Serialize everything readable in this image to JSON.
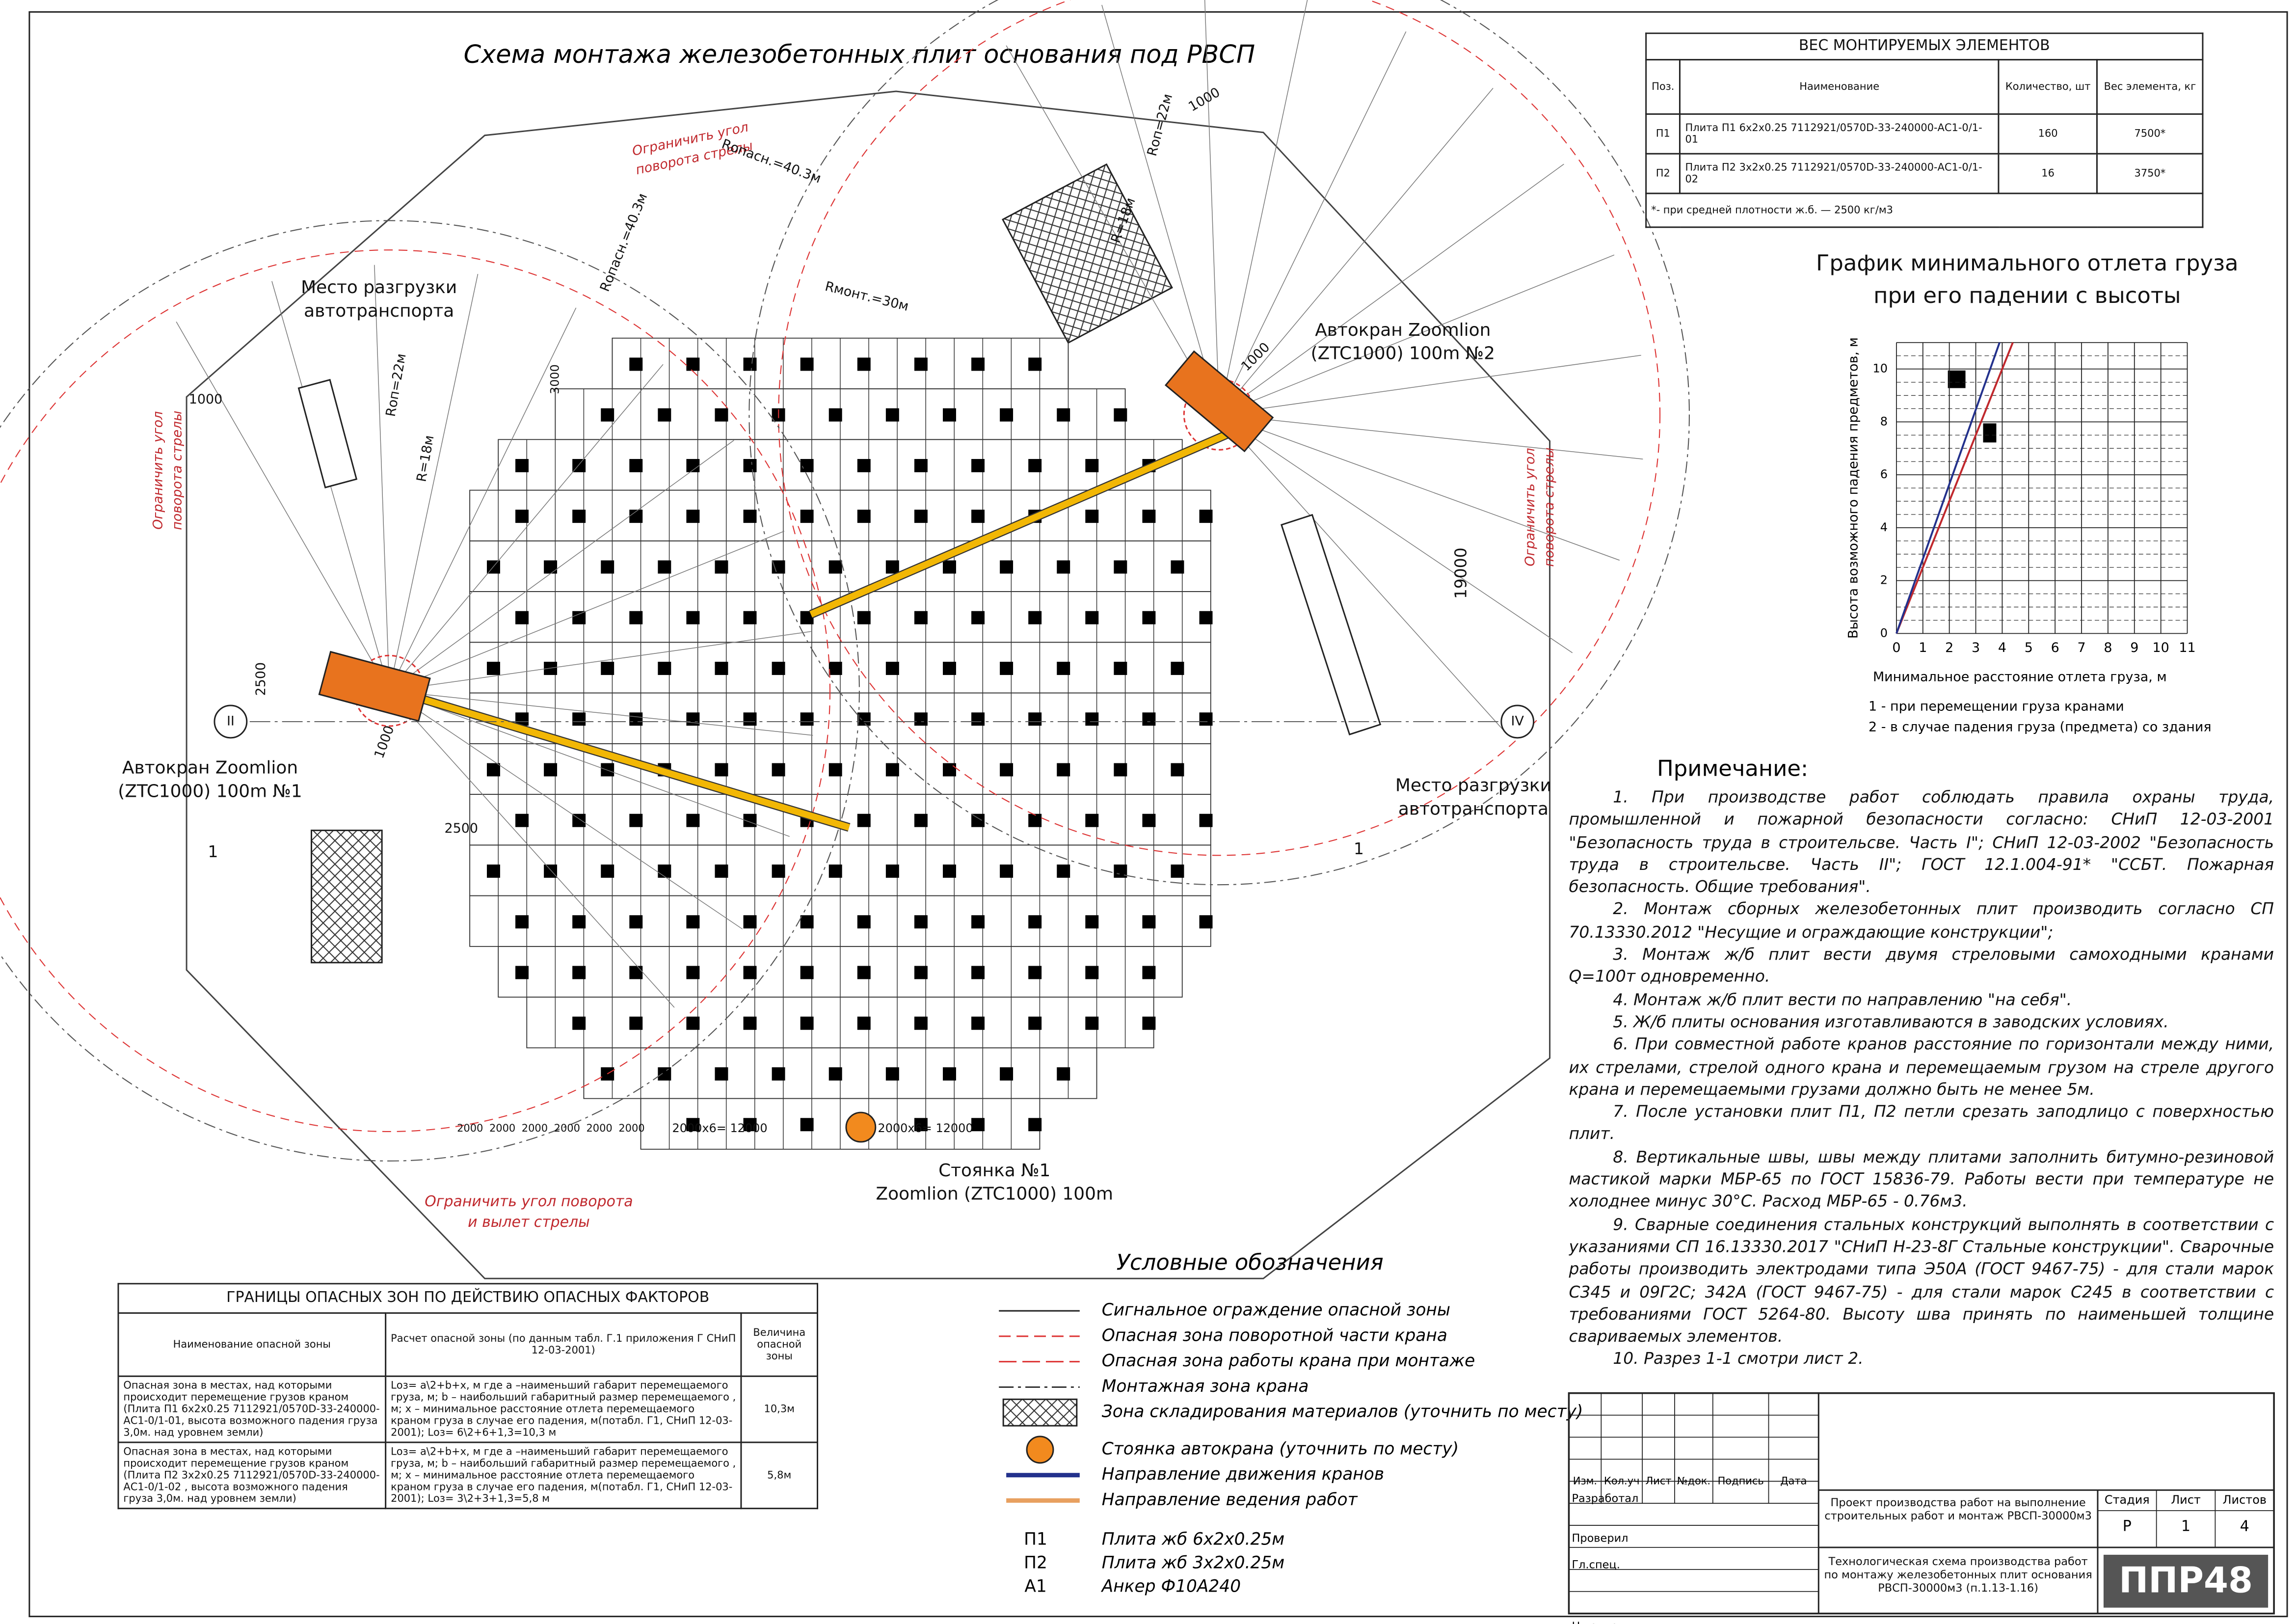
{
  "title": "Схема монтажа железобетонных плит основания под РВСП",
  "weights_table": {
    "title": "ВЕС МОНТИРУЕМЫХ ЭЛЕМЕНТОВ",
    "header": [
      "Поз.",
      "Наименование",
      "Количество, шт",
      "Вес элемента, кг"
    ],
    "rows": [
      [
        "П1",
        "Плита П1 6х2х0.25 7112921/0570D-33-240000-АС1-0/1-01",
        "160",
        "7500*"
      ],
      [
        "П2",
        "Плита П2 3х2х0.25 7112921/0570D-33-240000-АС1-0/1-02",
        "16",
        "3750*"
      ]
    ],
    "footnote": "*- при средней плотности ж.б. — 2500 кг/м3"
  },
  "chart_data": {
    "type": "line",
    "title": "График минимального отлета груза при его падении с высоты",
    "x_label": "Минимальное расстояние отлета груза, м",
    "y_label": "Высота возможного падения предметов, м",
    "xlim": [
      0,
      11
    ],
    "ylim": [
      0,
      11
    ],
    "xticks": [
      0,
      1,
      2,
      3,
      4,
      5,
      6,
      7,
      8,
      9,
      10,
      11
    ],
    "yticks": [
      0,
      2,
      4,
      6,
      8,
      10
    ],
    "grid": true,
    "series": [
      {
        "color": "#c0282d",
        "x": [
          0,
          4.4
        ],
        "values": [
          0,
          11
        ]
      },
      {
        "color": "#23318c",
        "x": [
          0,
          3.9
        ],
        "values": [
          0,
          11
        ]
      }
    ],
    "notes": [
      "1 - при перемещении груза кранами",
      "2 - в случае падения груза (предмета) со здания"
    ]
  },
  "notes": {
    "title": "Примечание:",
    "items": [
      "1. При производстве работ соблюдать правила охраны труда, промышленной и пожарной безопасности согласно: СНиП 12-03-2001 \"Безопасность труда в строительсве. Часть I\"; СНиП 12-03-2002 \"Безопасность труда в строительсве. Часть II\"; ГОСТ 12.1.004-91* \"ССБТ. Пожарная безопасность. Общие требования\".",
      "2. Монтаж сборных железобетонных плит производить согласно СП 70.13330.2012 \"Несущие и ограждающие конструкции\";",
      "3. Монтаж ж/б плит вести двумя стреловыми самоходными кранами Q=100т одновременно.",
      "4. Монтаж ж/б плит вести по направлению \"на себя\".",
      "5. Ж/б плиты основания изготавливаются в заводских условиях.",
      "6. При совместной работе кранов расстояние по горизонтали между ними, их стрелами, стрелой одного крана и перемещаемым грузом на стреле другого крана и перемещаемыми грузами должно быть не менее 5м.",
      "7. После установки плит П1, П2 петли срезать заподлицо с поверхностью плит.",
      "8. Вертикальные швы, швы между плитами заполнить битумно-резиновой мастикой марки МБР-65 по ГОСТ 15836-79. Работы вести при температуре не холоднее минус 30°С. Расход МБР-65 - 0.76м3.",
      "9. Сварные соединения стальных конструкций выполнять в соответствии с указаниями СП 16.13330.2017 \"СНиП Н-23-8Г Стальные конструкции\". Сварочные работы производить электродами типа Э50А (ГОСТ 9467-75) - для стали марок С345 и 09Г2С; 342А (ГОСТ 9467-75) - для стали марок С245 в соответствии с требованиями ГОСТ 5264-80. Высоту шва принять по наименьшей толщине свариваемых элементов.",
      "10. Разрез 1-1 смотри лист 2."
    ]
  },
  "hazard_table": {
    "title": "ГРАНИЦЫ ОПАСНЫХ ЗОН ПО ДЕЙСТВИЮ ОПАСНЫХ ФАКТОРОВ",
    "header": [
      "Наименование опасной зоны",
      "Расчет опасной зоны (по данным табл. Г.1 приложения Г СНиП 12-03-2001)",
      "Величина опасной зоны"
    ],
    "rows": [
      [
        "Опасная зона в местах, над которыми происходит перемещение грузов краном (Плита П1 6х2х0.25 7112921/0570D-33-240000-АС1-0/1-01, высота возможного падения груза 3,0м. над уровнем земли)",
        "Lоз= a\\2+b+x, м где а –наименьший габарит перемещаемого груза, м; b – наибольший габаритный размер перемещаемого , м; х – минимальное расстояние отлета перемещаемого краном груза в случае его падения, м(потабл. Г1, СНиП 12-03-2001); Lоз= 6\\2+6+1,3=10,3 м",
        "10,3м"
      ],
      [
        "Опасная зона в местах, над которыми происходит перемещение грузов краном (Плита П2 3х2х0.25 7112921/0570D-33-240000-АС1-0/1-02 , высота возможного падения груза 3,0м. над уровнем земли)",
        "Lоз= a\\2+b+x, м где а –наименьший габарит перемещаемого груза, м; b – наибольший габаритный размер перемещаемого , м; х – минимальное расстояние отлета перемещаемого краном груза в случае его падения, м(потабл. Г1, СНиП 12-03-2001); Lоз= 3\\2+3+1,3=5,8 м",
        "5,8м"
      ]
    ]
  },
  "legend": {
    "title": "Условные обозначения",
    "items": [
      "Сигнальное ограждение опасной зоны",
      "Опасная зона поворотной части крана",
      "Опасная зона работы крана при монтаже",
      "Монтажная зона крана",
      "Зона складирования материалов (уточнить по месту)",
      "Стоянка автокрана (уточнить по месту)",
      "Направление движения кранов",
      "Направление ведения работ"
    ],
    "codes": [
      [
        "П1",
        "Плита жб 6х2х0.25м"
      ],
      [
        "П2",
        "Плита жб 3х2х0.25м"
      ],
      [
        "А1",
        "Анкер Ф10А240"
      ]
    ]
  },
  "drawing": {
    "labels": [
      [
        "Место разгрузки",
        "автотранспорта"
      ],
      [
        "Место разгрузки",
        "автотранспорта"
      ],
      [
        "Автокран Zoomlion",
        "(ZTC1000) 100m №1"
      ],
      [
        "Автокран Zoomlion",
        "(ZTC1000) 100m №2"
      ],
      [
        "Стоянка №1",
        "Zoomlion (ZTC1000) 100m"
      ],
      [
        "Ограничить угол",
        "поворота стрелы"
      ],
      [
        "Ограничить угол",
        "поворота стрелы"
      ],
      [
        "Ограничить угол",
        "поворота стрелы"
      ],
      [
        "Ограничить угол поворота",
        "и вылет стрелы"
      ],
      [
        "Rопасн.=40.3м"
      ],
      [
        "Rопасн.=40.3м"
      ],
      [
        "Rмонт.=30м"
      ],
      [
        "Rоп=22м"
      ],
      [
        "Rоп=22м"
      ],
      [
        "R=18м"
      ],
      [
        "R=18м"
      ],
      [
        "1000"
      ],
      [
        "1000"
      ],
      [
        "1000"
      ],
      [
        "1000"
      ],
      [
        "2500"
      ],
      [
        "2500"
      ],
      [
        "3000"
      ],
      [
        "19000"
      ],
      [
        "2000х6= 12000"
      ],
      [
        "2000х6= 12000"
      ],
      [
        "II"
      ],
      [
        "IV"
      ],
      [
        "1"
      ],
      [
        "1"
      ],
      [
        "2000"
      ],
      [
        "2000"
      ],
      [
        "2000"
      ],
      [
        "2000"
      ],
      [
        "2000"
      ],
      [
        "2000"
      ]
    ]
  },
  "title_block": {
    "columns": [
      "Изм.",
      "Кол.уч",
      "Лист",
      "№док.",
      "Подпись",
      "Дата"
    ],
    "roles": [
      "Разработал",
      "Проверил",
      "Гл.спец.",
      "Н.контр."
    ],
    "project": "Проект производства работ на выполнение строительных работ и монтаж РВСП-30000м3",
    "sheet_title": "Технологическая схема производства работ по монтажу железобетонных плит основания РВСП-30000м3 (п.1.13-1.16)",
    "stage_header": [
      "Стадия",
      "Лист",
      "Листов"
    ],
    "stage_values": [
      "Р",
      "1",
      "4"
    ],
    "logo": "ППР48"
  }
}
